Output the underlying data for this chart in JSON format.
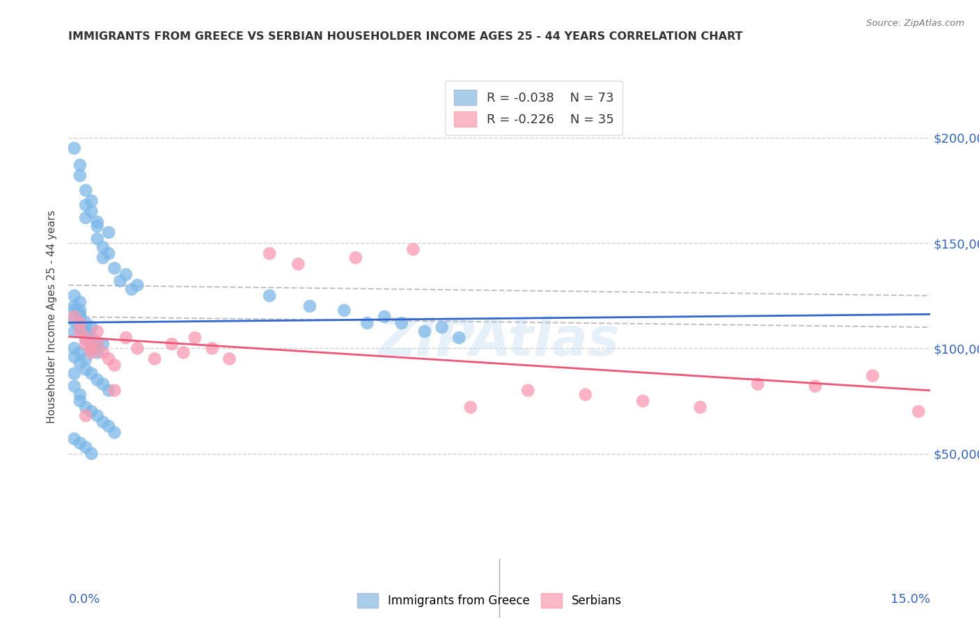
{
  "title": "IMMIGRANTS FROM GREECE VS SERBIAN HOUSEHOLDER INCOME AGES 25 - 44 YEARS CORRELATION CHART",
  "source": "Source: ZipAtlas.com",
  "ylabel": "Householder Income Ages 25 - 44 years",
  "xlim": [
    0.0,
    0.15
  ],
  "ylim": [
    0,
    230000
  ],
  "yticks": [
    50000,
    100000,
    150000,
    200000
  ],
  "ytick_labels": [
    "$50,000",
    "$100,000",
    "$150,000",
    "$200,000"
  ],
  "watermark": "ZIPAtlas",
  "legend_r1": "-0.038",
  "legend_n1": "73",
  "legend_r2": "-0.226",
  "legend_n2": "35",
  "blue_scatter": "#7BB8E8",
  "pink_scatter": "#F999B0",
  "blue_legend": "#A8CEE8",
  "pink_legend": "#F9B8C5",
  "trend_blue": "#3366CC",
  "trend_pink": "#EE5577",
  "ci_color": "#BBBBBB",
  "axis_label_color": "#3366CC",
  "title_color": "#333333",
  "greek_x": [
    0.001,
    0.002,
    0.002,
    0.003,
    0.003,
    0.003,
    0.004,
    0.004,
    0.005,
    0.005,
    0.005,
    0.006,
    0.006,
    0.007,
    0.007,
    0.008,
    0.009,
    0.01,
    0.011,
    0.012,
    0.001,
    0.001,
    0.002,
    0.002,
    0.002,
    0.003,
    0.003,
    0.004,
    0.004,
    0.005,
    0.001,
    0.001,
    0.001,
    0.002,
    0.002,
    0.003,
    0.003,
    0.004,
    0.005,
    0.006,
    0.001,
    0.001,
    0.002,
    0.002,
    0.003,
    0.003,
    0.004,
    0.005,
    0.006,
    0.007,
    0.001,
    0.001,
    0.002,
    0.002,
    0.003,
    0.004,
    0.005,
    0.006,
    0.007,
    0.008,
    0.001,
    0.002,
    0.003,
    0.004,
    0.055,
    0.058,
    0.062,
    0.065,
    0.068,
    0.042,
    0.035,
    0.048,
    0.052
  ],
  "greek_y": [
    195000,
    187000,
    182000,
    175000,
    168000,
    162000,
    170000,
    165000,
    160000,
    158000,
    152000,
    148000,
    143000,
    155000,
    145000,
    138000,
    132000,
    135000,
    128000,
    130000,
    125000,
    120000,
    122000,
    118000,
    115000,
    112000,
    108000,
    110000,
    105000,
    102000,
    118000,
    113000,
    108000,
    116000,
    110000,
    107000,
    104000,
    100000,
    98000,
    102000,
    100000,
    96000,
    98000,
    93000,
    95000,
    90000,
    88000,
    85000,
    83000,
    80000,
    88000,
    82000,
    78000,
    75000,
    72000,
    70000,
    68000,
    65000,
    63000,
    60000,
    57000,
    55000,
    53000,
    50000,
    115000,
    112000,
    108000,
    110000,
    105000,
    120000,
    125000,
    118000,
    112000
  ],
  "serbian_x": [
    0.001,
    0.002,
    0.002,
    0.003,
    0.003,
    0.004,
    0.004,
    0.005,
    0.005,
    0.006,
    0.007,
    0.008,
    0.01,
    0.012,
    0.015,
    0.018,
    0.02,
    0.022,
    0.025,
    0.028,
    0.035,
    0.04,
    0.05,
    0.06,
    0.07,
    0.08,
    0.09,
    0.1,
    0.11,
    0.12,
    0.13,
    0.14,
    0.148,
    0.003,
    0.008
  ],
  "serbian_y": [
    115000,
    112000,
    108000,
    105000,
    102000,
    100000,
    98000,
    108000,
    103000,
    98000,
    95000,
    92000,
    105000,
    100000,
    95000,
    102000,
    98000,
    105000,
    100000,
    95000,
    145000,
    140000,
    143000,
    147000,
    72000,
    80000,
    78000,
    75000,
    72000,
    83000,
    82000,
    87000,
    70000,
    68000,
    80000
  ]
}
